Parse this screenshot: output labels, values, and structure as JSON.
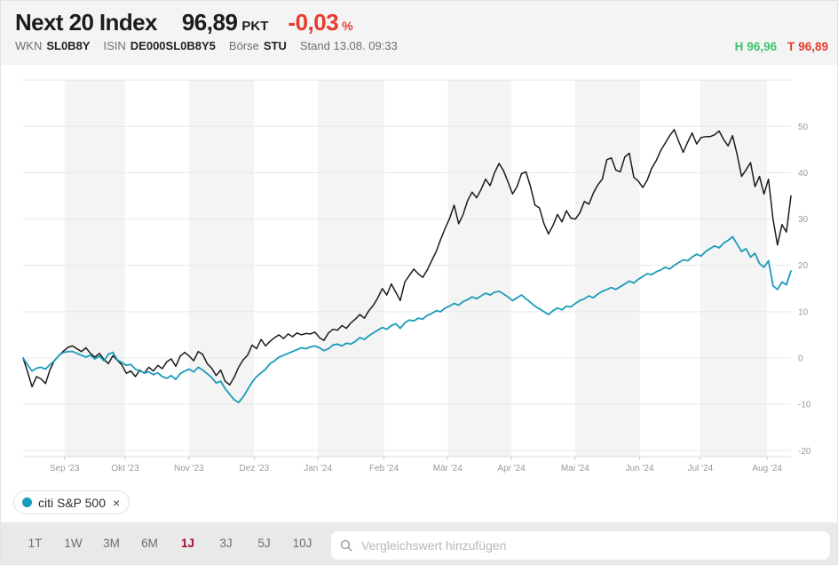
{
  "header": {
    "title": "Next 20 Index",
    "value": "96,89",
    "unit": "PKT",
    "change": "-0,03",
    "change_unit": "%",
    "wkn_label": "WKN",
    "wkn": "SL0B8Y",
    "isin_label": "ISIN",
    "isin": "DE000SL0B8Y5",
    "boerse_label": "Börse",
    "boerse": "STU",
    "stand": "Stand 13.08. 09:33",
    "high_label": "H",
    "high": "96,96",
    "low_label": "T",
    "low": "96,89"
  },
  "colors": {
    "header_bg": "#f4f4f4",
    "toolbar_bg": "#e9e9e9",
    "band_fill": "#f4f4f4",
    "grid": "#e8e8e8",
    "axis_text": "#999999",
    "accent_red": "#e73b2e",
    "accent_green": "#3ec46d",
    "active_range_red": "#a50d2d",
    "series_black": "#1b1b1b",
    "series_teal": "#1a9bba"
  },
  "chart_data": {
    "type": "line",
    "title": "",
    "xlabel": "",
    "ylabel": "",
    "grid": true,
    "legend_position": "bottom-left-chip",
    "ylim": [
      -21,
      60
    ],
    "y_ticks": [
      50,
      40,
      30,
      20,
      10,
      0,
      -10,
      -20
    ],
    "band_fill": "#f4f4f4",
    "x_ticks": [
      {
        "label": "Sep '23",
        "t": 0.054
      },
      {
        "label": "Okt '23",
        "t": 0.133
      },
      {
        "label": "Nov '23",
        "t": 0.216
      },
      {
        "label": "Dez '23",
        "t": 0.301
      },
      {
        "label": "Jan '24",
        "t": 0.384
      },
      {
        "label": "Feb '24",
        "t": 0.47
      },
      {
        "label": "Mär '24",
        "t": 0.553
      },
      {
        "label": "Apr '24",
        "t": 0.636
      },
      {
        "label": "Mai '24",
        "t": 0.719
      },
      {
        "label": "Jun '24",
        "t": 0.803
      },
      {
        "label": "Jul '24",
        "t": 0.882
      },
      {
        "label": "Aug '24",
        "t": 0.969
      }
    ],
    "series": [
      {
        "name": "Next 20 Index",
        "unit": "% (1J)",
        "color": "#1b1b1b",
        "values": [
          0,
          -3,
          -6.2,
          -4,
          -4.5,
          -5.5,
          -2.5,
          -0.5,
          0.5,
          1.5,
          2.3,
          2.6,
          2,
          1.4,
          2.2,
          1,
          0.2,
          1,
          -0.3,
          -1.2,
          0.5,
          -0.5,
          -1.5,
          -3.3,
          -2.8,
          -4,
          -2.6,
          -3.3,
          -2,
          -2.8,
          -1.6,
          -2.3,
          -0.8,
          -0.2,
          -1.8,
          0.4,
          1.2,
          0.4,
          -0.6,
          1.4,
          0.8,
          -1.2,
          -2.2,
          -3.8,
          -2.6,
          -5,
          -5.8,
          -4.2,
          -2,
          -0.4,
          0.6,
          2.8,
          2,
          4,
          2.6,
          3.6,
          4.4,
          5,
          4.2,
          5.2,
          4.6,
          5.4,
          5,
          5.3,
          5.2,
          5.6,
          4.4,
          3.8,
          5.4,
          6.2,
          6,
          7,
          6.4,
          7.6,
          8.4,
          9.4,
          8.6,
          10.2,
          11.4,
          13,
          15,
          13.6,
          16,
          14.2,
          12.4,
          16.4,
          17.8,
          19.2,
          18.2,
          17.4,
          19,
          21,
          23,
          25.6,
          28,
          30.2,
          33,
          29,
          31,
          34,
          35.8,
          34.6,
          36.4,
          38.6,
          37.2,
          40,
          42,
          40.4,
          38,
          35.4,
          37,
          39.8,
          40.2,
          37,
          33,
          32.4,
          29,
          26.8,
          28.6,
          31,
          29.4,
          31.8,
          30.2,
          30,
          31.4,
          33.8,
          33.2,
          35.6,
          37.4,
          38.6,
          42.8,
          43.2,
          40.6,
          40.2,
          43.4,
          44.2,
          39,
          38.2,
          36.8,
          38.4,
          41,
          42.6,
          44.8,
          46.4,
          48,
          49.3,
          46.8,
          44.4,
          46.6,
          48.6,
          46.2,
          47.6,
          47.8,
          47.8,
          48.2,
          49,
          47.2,
          45.8,
          48,
          44,
          39.2,
          40.6,
          42.2,
          37,
          39.2,
          35.4,
          38.6,
          30,
          24.4,
          28.8,
          27.2,
          35
        ]
      },
      {
        "name": "citi S&P 500",
        "unit": "% (1J)",
        "color": "#1a9bba",
        "values": [
          0,
          -1.5,
          -2.8,
          -2.2,
          -2,
          -2.4,
          -1.4,
          -0.6,
          0.6,
          1.2,
          1.4,
          1.4,
          1,
          0.6,
          0.2,
          0.6,
          -0.2,
          0.4,
          -0.6,
          0.8,
          1.2,
          -0.4,
          -1,
          -1.6,
          -1.4,
          -2.4,
          -2.8,
          -3.2,
          -3,
          -3.6,
          -3.2,
          -4,
          -4.4,
          -3.8,
          -4.6,
          -3.4,
          -2.8,
          -2.4,
          -3,
          -2,
          -2.6,
          -3.4,
          -4.2,
          -5.4,
          -5,
          -6.6,
          -7.8,
          -9,
          -9.6,
          -8.4,
          -6.8,
          -5.2,
          -4,
          -3.2,
          -2.4,
          -1.2,
          -0.6,
          0.2,
          0.6,
          1,
          1.4,
          1.8,
          2.2,
          2,
          2.4,
          2.6,
          2.2,
          1.6,
          2,
          2.8,
          3,
          2.6,
          3.2,
          3,
          3.6,
          4.4,
          4,
          4.8,
          5.4,
          6,
          6.6,
          6.2,
          7,
          7.4,
          6.4,
          7.6,
          8.2,
          8,
          8.6,
          8.4,
          9.2,
          9.6,
          10.2,
          10,
          10.8,
          11.2,
          11.8,
          11.4,
          12.2,
          12.6,
          13.2,
          12.8,
          13.4,
          14,
          13.6,
          14.2,
          14.4,
          13.8,
          13.2,
          12.4,
          13,
          13.6,
          12.8,
          12,
          11.2,
          10.6,
          10,
          9.4,
          10.2,
          10.8,
          10.4,
          11.2,
          11,
          11.8,
          12.4,
          12.8,
          13.4,
          13,
          13.8,
          14.4,
          14.8,
          15.2,
          14.8,
          15.4,
          16,
          16.6,
          16.2,
          17,
          17.6,
          18.2,
          18,
          18.6,
          19,
          19.6,
          19.2,
          20,
          20.6,
          21.2,
          21,
          21.8,
          22.4,
          22,
          23,
          23.6,
          24.2,
          23.8,
          24.8,
          25.4,
          26.2,
          24.6,
          23,
          23.6,
          21.8,
          22.6,
          20.4,
          19.6,
          21,
          15.6,
          14.8,
          16.4,
          15.8,
          18.8
        ]
      }
    ]
  },
  "legend": {
    "chip_label": "citi S&P 500",
    "remove_label": "×"
  },
  "toolbar": {
    "ranges": [
      "1T",
      "1W",
      "3M",
      "6M",
      "1J",
      "3J",
      "5J",
      "10J"
    ],
    "active": "1J",
    "search_placeholder": "Vergleichswert hinzufügen"
  }
}
